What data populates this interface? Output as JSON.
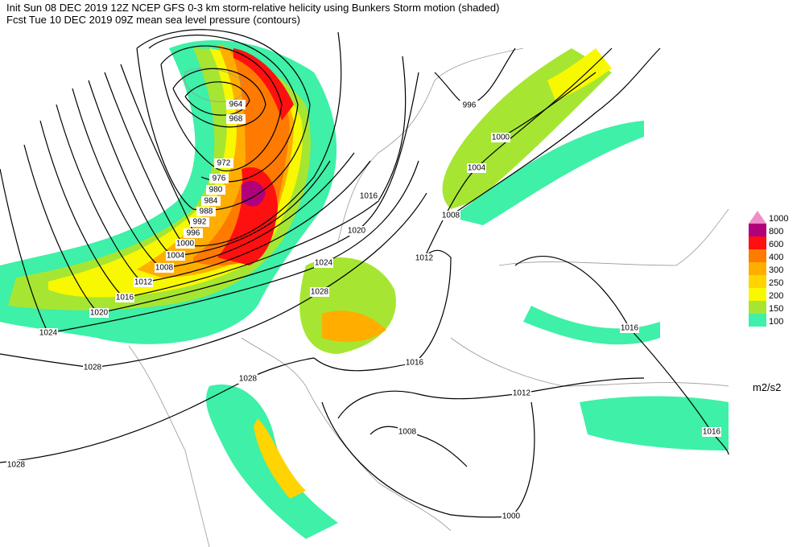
{
  "header": {
    "line1": "Init  Sun 08 DEC 2019 12Z   NCEP GFS 0-3 km storm-relative helicity using Bunkers Storm motion (shaded)",
    "line2": "Fcst Tue 10 DEC 2019 09Z   mean sea level pressure (contours)"
  },
  "legend": {
    "unit": "m2/s2",
    "items": [
      {
        "value": 1000,
        "color": "#f08cc8"
      },
      {
        "value": 800,
        "color": "#b0007a"
      },
      {
        "value": 600,
        "color": "#ff1010"
      },
      {
        "value": 400,
        "color": "#ff7a00"
      },
      {
        "value": 300,
        "color": "#ffae00"
      },
      {
        "value": 250,
        "color": "#ffd400"
      },
      {
        "value": 200,
        "color": "#f8f800"
      },
      {
        "value": 150,
        "color": "#a6e632"
      },
      {
        "value": 100,
        "color": "#3ef0a8"
      }
    ]
  },
  "contour_labels": [
    964,
    968,
    972,
    976,
    980,
    984,
    988,
    992,
    996,
    1000,
    1004,
    1008,
    1012,
    1016,
    1020,
    1024,
    1028,
    1028,
    1028,
    1028,
    1024,
    1020,
    1016,
    1012,
    1008,
    1004,
    1000,
    996,
    1016,
    1012,
    1008,
    1000,
    1016,
    1016
  ]
}
